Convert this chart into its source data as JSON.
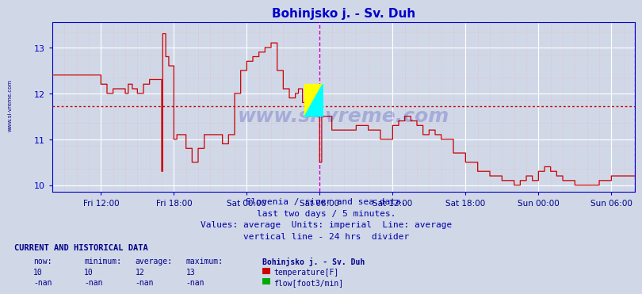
{
  "title": "Bohinjsko j. - Sv. Duh",
  "title_color": "#0000cc",
  "title_fontsize": 11,
  "bg_color": "#d0d8e8",
  "plot_bg_color": "#d0d8e8",
  "grid_color_major": "#ffffff",
  "grid_color_minor": "#e8b8b8",
  "axis_color": "#0000cc",
  "line_color": "#cc0000",
  "average_line_color": "#cc0000",
  "average_value": 11.72,
  "ylim": [
    9.85,
    13.55
  ],
  "yticks": [
    10,
    11,
    12,
    13
  ],
  "xlabel_color": "#000088",
  "xtick_labels": [
    "Fri 12:00",
    "Fri 18:00",
    "Sat 00:00",
    "Sat 06:00",
    "Sat 12:00",
    "Sat 18:00",
    "Sun 00:00",
    "Sun 06:00"
  ],
  "vertical_line_color": "#cc00cc",
  "watermark": "www.si-vreme.com",
  "footer_lines": [
    "Slovenia / river and sea data.",
    "last two days / 5 minutes.",
    "Values: average  Units: imperial  Line: average",
    "vertical line - 24 hrs  divider"
  ],
  "footer_color": "#0000aa",
  "footer_fontsize": 8,
  "table_header": "CURRENT AND HISTORICAL DATA",
  "table_header_color": "#000088",
  "table_cols": [
    "now:",
    "minimum:",
    "average:",
    "maximum:",
    "Bohinjsko j. - Sv. Duh"
  ],
  "temp_row": [
    "10",
    "10",
    "12",
    "13",
    "temperature[F]"
  ],
  "flow_row": [
    "-nan",
    "-nan",
    "-nan",
    "-nan",
    "flow[foot3/min]"
  ],
  "temp_color": "#cc0000",
  "flow_color": "#00aa00",
  "left_label": "www.si-vreme.com",
  "n_points": 576
}
